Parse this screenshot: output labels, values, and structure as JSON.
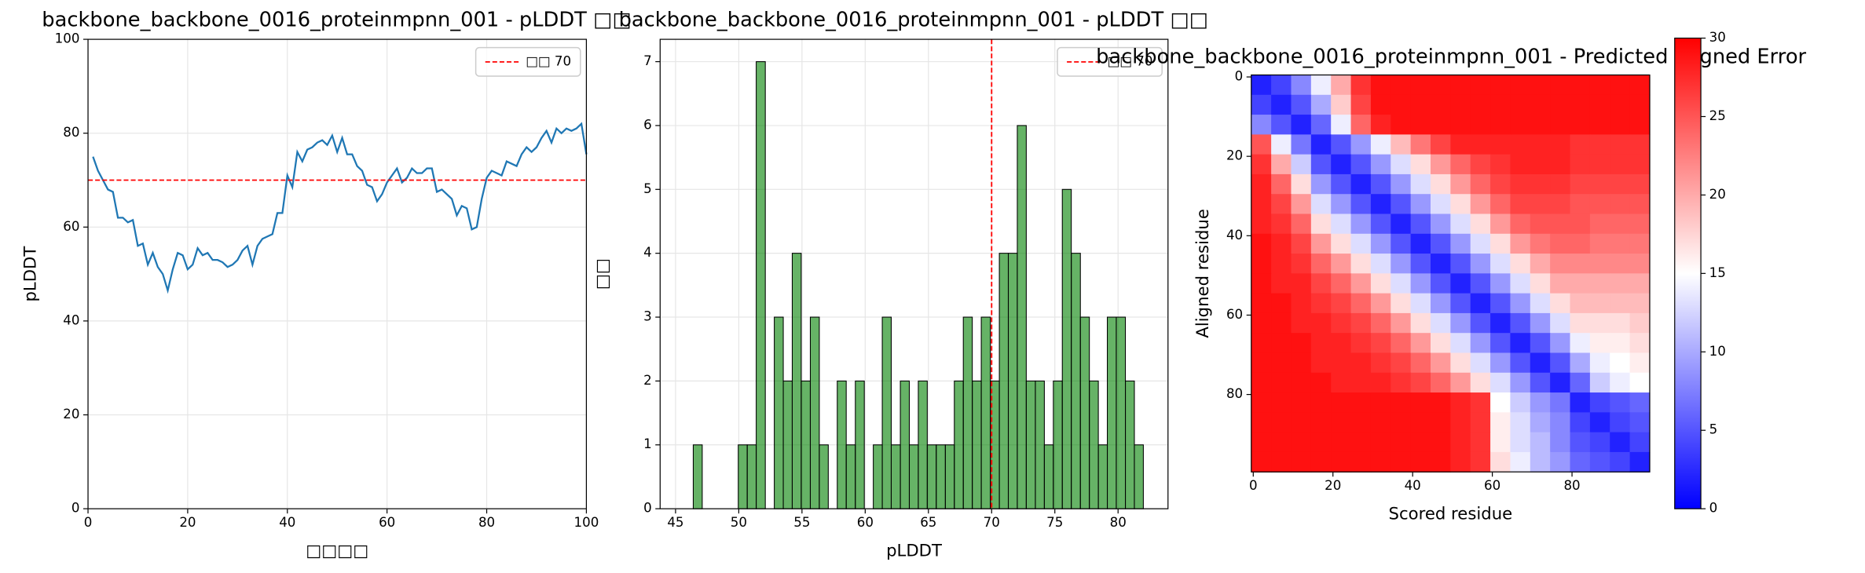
{
  "chart_data": [
    {
      "type": "line",
      "title": "backbone_backbone_0016_proteinmpnn_001 - pLDDT □□",
      "xlabel": "□□□□",
      "ylabel": "pLDDT",
      "x": [
        1,
        2,
        3,
        4,
        5,
        6,
        7,
        8,
        9,
        10,
        11,
        12,
        13,
        14,
        15,
        16,
        17,
        18,
        19,
        20,
        21,
        22,
        23,
        24,
        25,
        26,
        27,
        28,
        29,
        30,
        31,
        32,
        33,
        34,
        35,
        36,
        37,
        38,
        39,
        40,
        41,
        42,
        43,
        44,
        45,
        46,
        47,
        48,
        49,
        50,
        51,
        52,
        53,
        54,
        55,
        56,
        57,
        58,
        59,
        60,
        61,
        62,
        63,
        64,
        65,
        66,
        67,
        68,
        69,
        70,
        71,
        72,
        73,
        74,
        75,
        76,
        77,
        78,
        79,
        80,
        81,
        82,
        83,
        84,
        85,
        86,
        87,
        88,
        89,
        90,
        91,
        92,
        93,
        94,
        95,
        96,
        97,
        98,
        99,
        100
      ],
      "values": [
        75,
        72,
        70,
        68,
        67.5,
        62,
        62,
        61,
        61.5,
        56,
        56.5,
        52,
        54.5,
        51.5,
        50,
        46.5,
        51,
        54.5,
        54,
        51,
        52,
        55.5,
        54,
        54.5,
        53,
        53,
        52.5,
        51.5,
        52,
        53,
        55,
        56,
        52,
        56,
        57.5,
        58,
        58.5,
        63,
        63,
        71,
        68.5,
        76,
        74,
        76.5,
        77,
        78,
        78.5,
        77.5,
        79.5,
        76,
        79,
        75.5,
        75.5,
        73,
        72,
        69,
        68.5,
        65.5,
        67,
        69.5,
        71,
        72.5,
        69.5,
        70.5,
        72.5,
        71.5,
        71.5,
        72.5,
        72.5,
        67.5,
        68,
        67,
        66,
        62.5,
        64.5,
        64,
        59.5,
        60,
        66,
        70.5,
        72,
        71.5,
        71,
        74,
        73.5,
        73,
        75.5,
        77,
        76,
        77,
        79,
        80.5,
        78,
        81,
        80,
        81,
        80.5,
        81,
        82,
        75.5
      ],
      "color": "#1f77b4",
      "xlim": [
        0,
        100
      ],
      "ylim": [
        0,
        100
      ],
      "xticks": [
        0,
        20,
        40,
        60,
        80,
        100
      ],
      "yticks": [
        0,
        20,
        40,
        60,
        80,
        100
      ],
      "grid": true,
      "threshold": {
        "value": 70,
        "label": "□□ 70",
        "color": "#ff0000"
      },
      "legend": "upper right"
    },
    {
      "type": "histogram",
      "title": "backbone_backbone_0016_proteinmpnn_001 - pLDDT □□",
      "xlabel": "pLDDT",
      "ylabel": "□□",
      "bins": [
        46.4,
        47.11,
        47.82,
        48.54,
        49.25,
        49.96,
        50.67,
        51.38,
        52.1,
        52.81,
        53.52,
        54.23,
        54.94,
        55.66,
        56.37,
        57.08,
        57.79,
        58.5,
        59.22,
        59.93,
        60.64,
        61.35,
        62.06,
        62.78,
        63.49,
        64.2,
        64.91,
        65.62,
        66.34,
        67.05,
        67.76,
        68.47,
        69.18,
        69.9,
        70.61,
        71.32,
        72.03,
        72.74,
        73.46,
        74.17,
        74.88,
        75.59,
        76.3,
        77.02,
        77.73,
        78.44,
        79.15,
        79.86,
        80.58,
        81.29,
        82.0
      ],
      "counts": [
        1,
        0,
        0,
        0,
        0,
        1,
        1,
        7,
        0,
        3,
        2,
        4,
        2,
        3,
        1,
        0,
        2,
        1,
        2,
        0,
        1,
        3,
        1,
        2,
        1,
        2,
        1,
        1,
        1,
        2,
        3,
        2,
        3,
        2,
        4,
        4,
        6,
        2,
        2,
        1,
        2,
        5,
        4,
        3,
        2,
        1,
        3,
        3,
        2,
        1
      ],
      "color": "#008000",
      "alpha": 0.6,
      "xlim": [
        43.78,
        83.95
      ],
      "ylim": [
        0,
        7.35
      ],
      "xticks": [
        45,
        50,
        55,
        60,
        65,
        70,
        75,
        80
      ],
      "yticks": [
        0,
        1,
        2,
        3,
        4,
        5,
        6,
        7
      ],
      "grid": true,
      "threshold": {
        "value": 70,
        "label": "□□ 70",
        "color": "#ff0000"
      },
      "legend": "upper right"
    },
    {
      "type": "heatmap",
      "title": "backbone_backbone_0016_proteinmpnn_001 - Predicted Aligned Error",
      "xlabel": "Scored residue",
      "ylabel": "Aligned residue",
      "xlim": [
        -0.5,
        99.5
      ],
      "ylim": [
        99.5,
        -0.5
      ],
      "xticks": [
        0,
        20,
        40,
        60,
        80
      ],
      "yticks": [
        0,
        20,
        40,
        60,
        80
      ],
      "zlim": [
        0,
        30
      ],
      "zticks": [
        0,
        5,
        10,
        15,
        20,
        25,
        30
      ],
      "colormap": "bwr",
      "z": [
        [
          2,
          4,
          8,
          14,
          20,
          27,
          29,
          29,
          29,
          29,
          29,
          29,
          29,
          29,
          29,
          29,
          29,
          29,
          29,
          29
        ],
        [
          4,
          2,
          5,
          10,
          18,
          26,
          29,
          29,
          29,
          29,
          29,
          29,
          29,
          29,
          29,
          29,
          29,
          29,
          29,
          29
        ],
        [
          8,
          5,
          2,
          6,
          14,
          24,
          28,
          29,
          29,
          29,
          29,
          29,
          29,
          29,
          29,
          29,
          29,
          29,
          29,
          29
        ],
        [
          25,
          14,
          7,
          2,
          5,
          9,
          14,
          19,
          23,
          26,
          28,
          28,
          28,
          28,
          28,
          28,
          27,
          27,
          27,
          27
        ],
        [
          27,
          20,
          12,
          5,
          2,
          5,
          9,
          13,
          17,
          21,
          24,
          26,
          27,
          28,
          28,
          28,
          27,
          27,
          27,
          27
        ],
        [
          28,
          24,
          17,
          9,
          5,
          2,
          5,
          9,
          13,
          17,
          21,
          24,
          26,
          27,
          27,
          27,
          26,
          26,
          26,
          26
        ],
        [
          28,
          26,
          21,
          13,
          9,
          5,
          2,
          5,
          9,
          13,
          17,
          21,
          24,
          26,
          26,
          26,
          25,
          25,
          25,
          25
        ],
        [
          28,
          27,
          24,
          17,
          13,
          9,
          5,
          2,
          5,
          9,
          13,
          17,
          21,
          24,
          25,
          25,
          25,
          24,
          24,
          24
        ],
        [
          29,
          28,
          26,
          21,
          17,
          13,
          9,
          5,
          2,
          5,
          9,
          13,
          17,
          21,
          23,
          24,
          24,
          23,
          23,
          23
        ],
        [
          29,
          28,
          27,
          24,
          21,
          17,
          13,
          9,
          5,
          2,
          5,
          9,
          13,
          17,
          20,
          22,
          22,
          22,
          22,
          22
        ],
        [
          29,
          28,
          28,
          26,
          24,
          21,
          17,
          13,
          9,
          5,
          2,
          5,
          9,
          13,
          17,
          20,
          20,
          20,
          20,
          20
        ],
        [
          29,
          29,
          28,
          27,
          26,
          24,
          21,
          17,
          13,
          9,
          5,
          2,
          5,
          9,
          13,
          17,
          19,
          19,
          19,
          19
        ],
        [
          29,
          29,
          28,
          28,
          27,
          26,
          24,
          21,
          17,
          13,
          9,
          5,
          2,
          5,
          9,
          13,
          17,
          17,
          17,
          18
        ],
        [
          29,
          29,
          29,
          28,
          28,
          27,
          26,
          24,
          21,
          17,
          13,
          9,
          5,
          2,
          5,
          9,
          14,
          16,
          16,
          17
        ],
        [
          29,
          29,
          29,
          28,
          28,
          28,
          27,
          26,
          24,
          21,
          17,
          13,
          9,
          5,
          2,
          5,
          10,
          14,
          15,
          16
        ],
        [
          29,
          29,
          29,
          29,
          28,
          28,
          28,
          27,
          26,
          24,
          21,
          17,
          13,
          9,
          5,
          2,
          6,
          12,
          14,
          15
        ],
        [
          29,
          29,
          29,
          29,
          29,
          29,
          29,
          29,
          29,
          29,
          28,
          27,
          15,
          12,
          9,
          7,
          2,
          4,
          5,
          6
        ],
        [
          29,
          29,
          29,
          29,
          29,
          29,
          29,
          29,
          29,
          29,
          28,
          27,
          16,
          13,
          10,
          8,
          4,
          2,
          4,
          5
        ],
        [
          29,
          29,
          29,
          29,
          29,
          29,
          29,
          29,
          29,
          29,
          28,
          27,
          16,
          13,
          11,
          8,
          5,
          4,
          2,
          4
        ],
        [
          29,
          29,
          29,
          29,
          29,
          29,
          29,
          29,
          29,
          29,
          28,
          27,
          17,
          14,
          11,
          9,
          6,
          5,
          4,
          2
        ]
      ]
    }
  ]
}
